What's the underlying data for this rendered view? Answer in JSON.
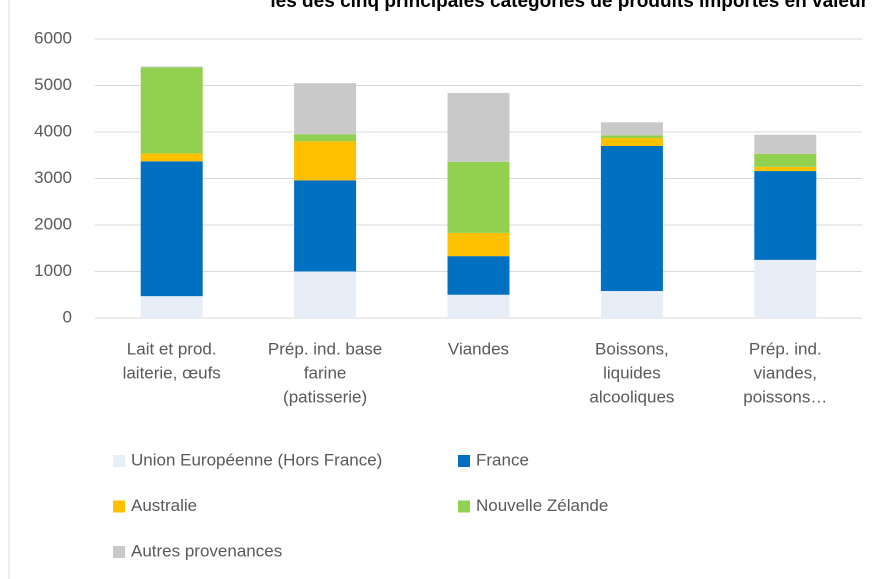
{
  "chart_data": {
    "type": "stacked_bar",
    "title": "les des cinq principales catégories de produits importés en valeur",
    "categories": [
      [
        "Lait et prod.",
        "laiterie, œufs"
      ],
      [
        "Prép. ind. base",
        "farine",
        "(patisserie)"
      ],
      [
        "Viandes"
      ],
      [
        "Boissons,",
        "liquides",
        "alcooliques"
      ],
      [
        "Prép. ind.",
        "viandes,",
        "poissons…"
      ]
    ],
    "series": [
      {
        "name": "Union Européenne (Hors France)",
        "color": "#e8eef8",
        "values": [
          470,
          1000,
          500,
          580,
          1250
        ]
      },
      {
        "name": "France",
        "color": "#0070c0",
        "values": [
          2900,
          1960,
          830,
          3120,
          1910
        ]
      },
      {
        "name": "Australie",
        "color": "#ffc000",
        "values": [
          170,
          840,
          500,
          170,
          90
        ]
      },
      {
        "name": "Nouvelle Zélande",
        "color": "#92d050",
        "values": [
          1850,
          150,
          1530,
          60,
          280
        ]
      },
      {
        "name": "Autres provenances",
        "color": "#c9c9c9",
        "values": [
          20,
          1100,
          1480,
          280,
          410
        ]
      }
    ],
    "ylim": [
      0,
      6000
    ],
    "yticks": [
      0,
      1000,
      2000,
      3000,
      4000,
      5000,
      6000
    ],
    "grid": true,
    "legend": "bottom"
  }
}
